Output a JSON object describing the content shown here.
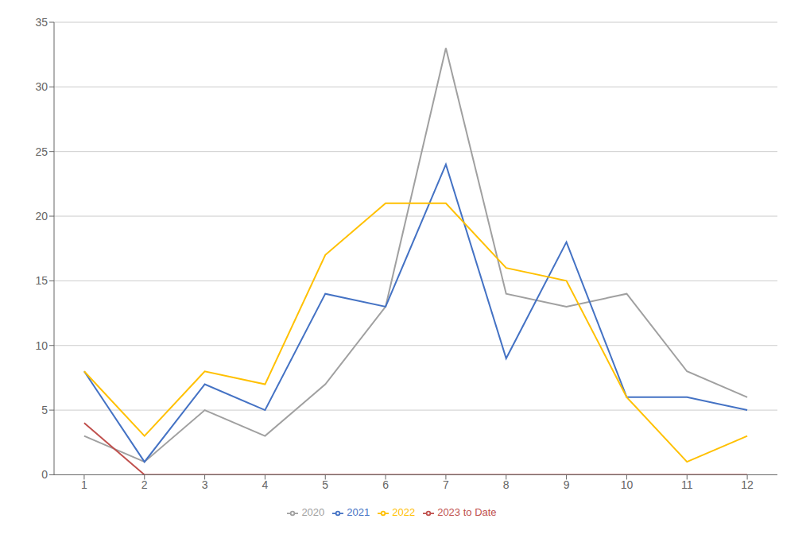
{
  "chart_data": {
    "type": "line",
    "x": [
      1,
      2,
      3,
      4,
      5,
      6,
      7,
      8,
      9,
      10,
      11,
      12
    ],
    "series": [
      {
        "name": "2020",
        "color": "#A0A0A0",
        "values": [
          3,
          1,
          5,
          3,
          7,
          13,
          33,
          14,
          13,
          14,
          8,
          6
        ]
      },
      {
        "name": "2021",
        "color": "#4472C4",
        "values": [
          8,
          1,
          7,
          5,
          14,
          13,
          24,
          9,
          18,
          6,
          6,
          5
        ]
      },
      {
        "name": "2022",
        "color": "#FFC000",
        "values": [
          8,
          3,
          8,
          7,
          17,
          21,
          21,
          16,
          15,
          6,
          1,
          3
        ]
      },
      {
        "name": "2023 to Date",
        "color": "#C0504D",
        "values": [
          4,
          0,
          0,
          0,
          0,
          0,
          0,
          0,
          0,
          0,
          0,
          0
        ]
      }
    ],
    "xlim": [
      0.5,
      12.5
    ],
    "xticks": [
      1,
      2,
      3,
      4,
      5,
      6,
      7,
      8,
      9,
      10,
      11,
      12
    ],
    "ylim": [
      0,
      35
    ],
    "yticks": [
      0,
      5,
      10,
      15,
      20,
      25,
      30,
      35
    ],
    "grid": "y",
    "legend": "bottom"
  }
}
